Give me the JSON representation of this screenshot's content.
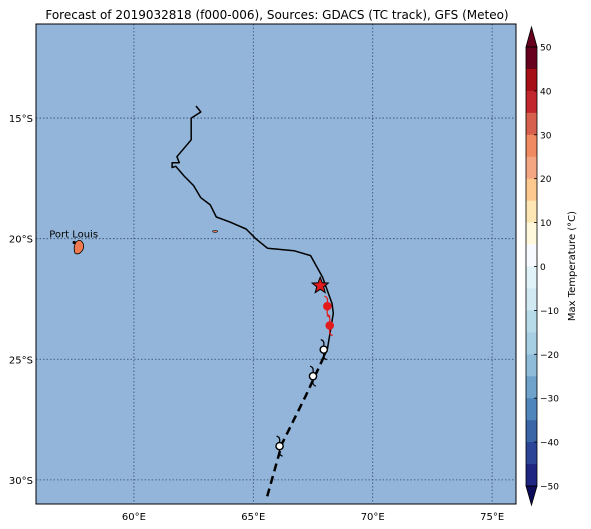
{
  "title": "Forecast of 2019032818 (f000-006), Sources: GDACS (TC track), GFS (Meteo)",
  "axes": {
    "lon_ticks": [
      {
        "value": 60,
        "label": "60°E"
      },
      {
        "value": 65,
        "label": "65°E"
      },
      {
        "value": 70,
        "label": "70°E"
      },
      {
        "value": 75,
        "label": "75°E"
      }
    ],
    "lat_ticks": [
      {
        "value": -15,
        "label": "15°S"
      },
      {
        "value": -20,
        "label": "20°S"
      },
      {
        "value": -25,
        "label": "25°S"
      },
      {
        "value": -30,
        "label": "30°S"
      }
    ],
    "lon_range": [
      55.9,
      76.0
    ],
    "lat_range": [
      -31.0,
      -11.1
    ]
  },
  "place": {
    "name": "Port Louis",
    "lon": 57.5,
    "lat": -20.16
  },
  "colorbar": {
    "label": "Max Temperature (°C)",
    "min": -50,
    "max": 50,
    "ticks": [
      {
        "value": 50,
        "label": "50"
      },
      {
        "value": 40,
        "label": "40"
      },
      {
        "value": 30,
        "label": "30"
      },
      {
        "value": 20,
        "label": "20"
      },
      {
        "value": 10,
        "label": "10"
      },
      {
        "value": 0,
        "label": "0"
      },
      {
        "value": -10,
        "label": "−10"
      },
      {
        "value": -20,
        "label": "−20"
      },
      {
        "value": -30,
        "label": "−30"
      },
      {
        "value": -40,
        "label": "−40"
      },
      {
        "value": -50,
        "label": "−50"
      }
    ],
    "bands": [
      {
        "from": 45,
        "to": 50,
        "color": "#67001f"
      },
      {
        "from": 40,
        "to": 45,
        "color": "#a50f15"
      },
      {
        "from": 35,
        "to": 40,
        "color": "#c1272d"
      },
      {
        "from": 30,
        "to": 35,
        "color": "#d6604d"
      },
      {
        "from": 25,
        "to": 30,
        "color": "#ef8a62"
      },
      {
        "from": 20,
        "to": 25,
        "color": "#f4a582"
      },
      {
        "from": 15,
        "to": 20,
        "color": "#fdc98e"
      },
      {
        "from": 10,
        "to": 15,
        "color": "#fee6b4"
      },
      {
        "from": 5,
        "to": 10,
        "color": "#fff8dc"
      },
      {
        "from": 0,
        "to": 5,
        "color": "#f7fbff"
      },
      {
        "from": -5,
        "to": 0,
        "color": "#e0f3f8"
      },
      {
        "from": -10,
        "to": -5,
        "color": "#d1e9f2"
      },
      {
        "from": -15,
        "to": -10,
        "color": "#b7dbe9"
      },
      {
        "from": -20,
        "to": -15,
        "color": "#a6cfe3"
      },
      {
        "from": -25,
        "to": -20,
        "color": "#8fbcd8"
      },
      {
        "from": -30,
        "to": -25,
        "color": "#6fa3cb"
      },
      {
        "from": -35,
        "to": -30,
        "color": "#4f86bc"
      },
      {
        "from": -40,
        "to": -35,
        "color": "#3a66a8"
      },
      {
        "from": -45,
        "to": -40,
        "color": "#2d4597"
      },
      {
        "from": -50,
        "to": -45,
        "color": "#1f2682"
      }
    ],
    "under_color": "#0c0c5a",
    "over_color": "#67001f"
  },
  "colors": {
    "ocean": "#92b5d9",
    "mauritius": "#f07a50",
    "storm_marker": "#e31a1c",
    "grid": "#33476b"
  },
  "track_past": [
    [
      62.6,
      -14.5
    ],
    [
      62.8,
      -14.75
    ],
    [
      62.4,
      -15.0
    ],
    [
      62.4,
      -15.9
    ],
    [
      61.8,
      -16.6
    ],
    [
      61.9,
      -16.85
    ],
    [
      61.6,
      -16.85
    ],
    [
      61.6,
      -17.05
    ],
    [
      61.75,
      -17.0
    ],
    [
      62.1,
      -17.4
    ],
    [
      62.5,
      -17.8
    ],
    [
      62.8,
      -18.3
    ],
    [
      63.2,
      -18.6
    ],
    [
      63.45,
      -19.1
    ],
    [
      64.0,
      -19.3
    ],
    [
      64.7,
      -19.6
    ],
    [
      65.1,
      -20.0
    ],
    [
      65.6,
      -20.4
    ],
    [
      66.7,
      -20.5
    ],
    [
      67.4,
      -20.7
    ],
    [
      67.9,
      -21.6
    ],
    [
      68.3,
      -22.7
    ],
    [
      68.35,
      -23.1
    ],
    [
      68.1,
      -24.6
    ],
    [
      67.95,
      -24.9
    ]
  ],
  "track_forecast": [
    [
      67.95,
      -24.9
    ],
    [
      67.2,
      -26.5
    ],
    [
      66.2,
      -28.5
    ],
    [
      65.55,
      -30.8
    ]
  ],
  "storm_now": {
    "lon": 67.8,
    "lat": -21.95
  },
  "red_cyclones": [
    {
      "lon": 68.1,
      "lat": -22.8
    },
    {
      "lon": 68.2,
      "lat": -23.6
    }
  ],
  "outline_cyclones": [
    {
      "lon": 67.95,
      "lat": -24.6
    },
    {
      "lon": 67.5,
      "lat": -25.7
    },
    {
      "lon": 66.1,
      "lat": -28.6
    }
  ]
}
